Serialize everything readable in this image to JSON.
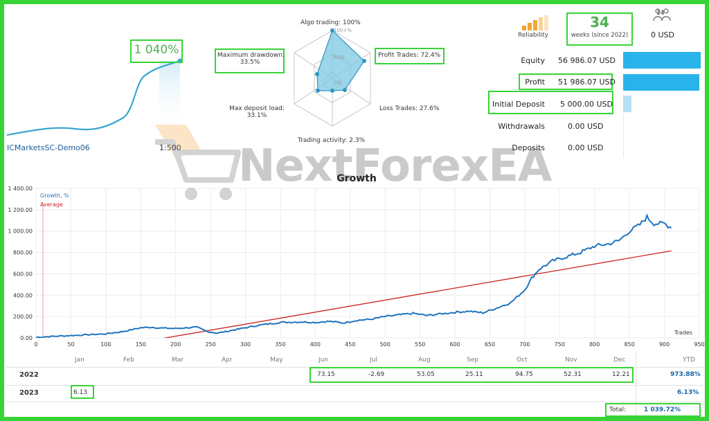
{
  "growth_widget": {
    "percent": "1 040%",
    "account": "ICMarketsSC-Demo06",
    "leverage": "1:500"
  },
  "radar": {
    "labels": {
      "algo": "Algo trading: 100%",
      "profit_trades": "Profit Trades: 72.4%",
      "loss_trades": "Loss Trades: 27.6%",
      "activity": "Trading activity: 2.3%",
      "deposit_load_1": "Max deposit load:",
      "deposit_load_2": "33.1%",
      "drawdown_1": "Maximum drawdown:",
      "drawdown_2": "33.5%"
    },
    "ring_labels": [
      "100+%",
      "50%",
      "0%"
    ]
  },
  "stats": {
    "reliability_label": "Reliability",
    "weeks": "34",
    "weeks_label": "weeks (since 2022)",
    "subscribers": "14",
    "price": "0 USD"
  },
  "finance": [
    {
      "label": "Equity",
      "value": "56 986.07 USD",
      "bar": 1.0
    },
    {
      "label": "Profit",
      "value": "51 986.07 USD",
      "bar": 0.912
    },
    {
      "label": "Initial Deposit",
      "value": "5 000.00 USD",
      "bar": 0.088
    },
    {
      "label": "Withdrawals",
      "value": "0.00 USD",
      "bar": 0
    },
    {
      "label": "Deposits",
      "value": "0.00 USD",
      "bar": 0
    }
  ],
  "watermark": "NextForexEA",
  "chart_data": {
    "type": "line",
    "title": "Growth",
    "xlabel": "Trades",
    "ylabel": "",
    "x_ticks": [
      0,
      50,
      100,
      150,
      200,
      250,
      300,
      350,
      400,
      450,
      500,
      550,
      600,
      650,
      700,
      750,
      800,
      850,
      900,
      950
    ],
    "y_ticks": [
      "0.00",
      "200.00",
      "400.00",
      "600.00",
      "800.00",
      "1 000.00",
      "1 200.00",
      "1 400.00"
    ],
    "xlim": [
      0,
      950
    ],
    "ylim": [
      0,
      1400
    ],
    "grid": true,
    "legend_position": "top-left",
    "series": [
      {
        "name": "Growth, %",
        "color": "#1e73be",
        "points": [
          [
            0,
            5
          ],
          [
            25,
            15
          ],
          [
            50,
            22
          ],
          [
            75,
            30
          ],
          [
            100,
            38
          ],
          [
            125,
            60
          ],
          [
            150,
            95
          ],
          [
            165,
            100
          ],
          [
            180,
            92
          ],
          [
            200,
            88
          ],
          [
            215,
            95
          ],
          [
            230,
            100
          ],
          [
            245,
            60
          ],
          [
            260,
            45
          ],
          [
            280,
            70
          ],
          [
            300,
            95
          ],
          [
            320,
            120
          ],
          [
            350,
            145
          ],
          [
            380,
            150
          ],
          [
            400,
            145
          ],
          [
            420,
            155
          ],
          [
            440,
            140
          ],
          [
            460,
            165
          ],
          [
            480,
            175
          ],
          [
            500,
            200
          ],
          [
            520,
            215
          ],
          [
            540,
            230
          ],
          [
            560,
            210
          ],
          [
            580,
            225
          ],
          [
            600,
            240
          ],
          [
            620,
            250
          ],
          [
            640,
            235
          ],
          [
            660,
            280
          ],
          [
            680,
            330
          ],
          [
            700,
            450
          ],
          [
            710,
            560
          ],
          [
            720,
            640
          ],
          [
            740,
            720
          ],
          [
            760,
            760
          ],
          [
            780,
            800
          ],
          [
            800,
            860
          ],
          [
            820,
            880
          ],
          [
            835,
            910
          ],
          [
            850,
            1000
          ],
          [
            865,
            1060
          ],
          [
            875,
            1130
          ],
          [
            885,
            1070
          ],
          [
            900,
            1070
          ],
          [
            910,
            1030
          ]
        ]
      },
      {
        "name": "Average",
        "color": "#cc2222",
        "points": [
          [
            150,
            -40
          ],
          [
            910,
            815
          ]
        ]
      }
    ]
  },
  "year_table": {
    "months": [
      "Jan",
      "Feb",
      "Mar",
      "Apr",
      "May",
      "Jun",
      "Jul",
      "Aug",
      "Sep",
      "Oct",
      "Nov",
      "Dec"
    ],
    "ytd_label": "YTD",
    "rows": [
      {
        "year": "2022",
        "values": [
          "",
          "",
          "",
          "",
          "",
          "73.15",
          "-2.69",
          "53.05",
          "25.11",
          "94.75",
          "52.31",
          "12.21"
        ],
        "ytd": "973.88%"
      },
      {
        "year": "2023",
        "values": [
          "6.13",
          "",
          "",
          "",
          "",
          "",
          "",
          "",
          "",
          "",
          "",
          ""
        ],
        "ytd": "6.13%"
      }
    ],
    "total_label": "Total:",
    "total_value": "1 039.72%"
  }
}
